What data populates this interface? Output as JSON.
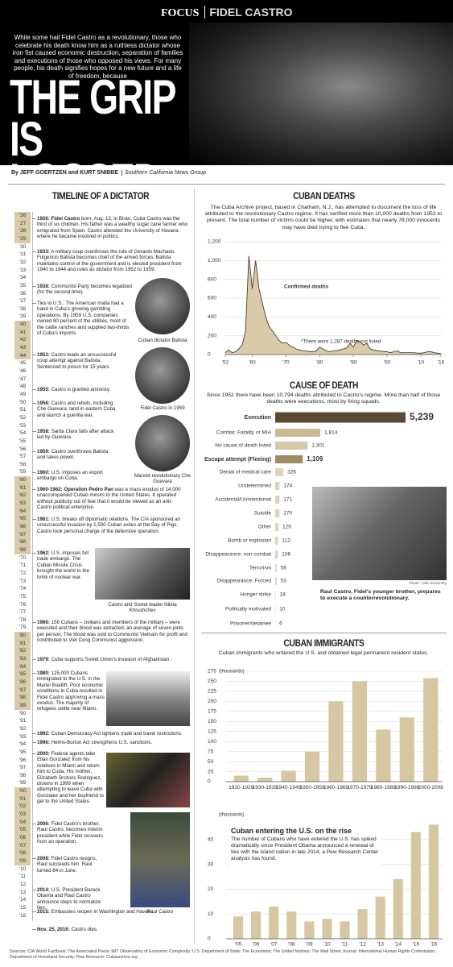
{
  "header": {
    "kicker": "FOCUS",
    "topic": "FIDEL CASTRO",
    "intro": "While some hail Fidel Castro as a revolutionary, those who celebrate his death know him as a ruthless dictator whose iron fist caused economic destruction, separation of families and executions of those who opposed his views.  For many people, his death signifies hopes for a new future and a life of freedom, because",
    "title": "THE GRIP IS LOOSED",
    "byline": "By JEFF GOERTZEN and KURT SNIBBE",
    "byline_org": "Southern California News Group"
  },
  "timeline": {
    "title": "TIMELINE OF A DICTATOR",
    "years": [
      "'26",
      "'27",
      "'28",
      "'29",
      "'30",
      "'31",
      "'32",
      "'33",
      "'34",
      "'35",
      "'36",
      "'37",
      "'38",
      "'39",
      "'40",
      "'41",
      "'42",
      "'43",
      "'44",
      "'45",
      "'46",
      "'47",
      "'48",
      "'49",
      "'50",
      "'51",
      "'52",
      "'53",
      "'54",
      "'55",
      "'56",
      "'57",
      "'58",
      "'59",
      "'60",
      "'61",
      "'62",
      "'63",
      "'64",
      "'65",
      "'66",
      "'67",
      "'68",
      "'69",
      "'70",
      "'71",
      "'72",
      "'73",
      "'74",
      "'75",
      "'76",
      "'77",
      "'78",
      "'79",
      "'80",
      "'81",
      "'82",
      "'83",
      "'84",
      "'85",
      "'86",
      "'87",
      "'88",
      "'89",
      "'90",
      "'91",
      "'92",
      "'93",
      "'94",
      "'95",
      "'96",
      "'97",
      "'98",
      "'99",
      "'00",
      "'01",
      "'02",
      "'03",
      "'04",
      "'05",
      "'06",
      "'07",
      "'08",
      "'09",
      "'10",
      "'11",
      "'12",
      "'13",
      "'14",
      "'15",
      "'16"
    ],
    "entries": [
      {
        "lead": "1926: Fidel Castro",
        "text": "born, Aug. 13, in Birán, Cuba Castro was the third of six children. His father was a wealthy sugar cane farmer who emigrated from Spain. Castro attended the University of Havana where he became involved in politics."
      },
      {
        "lead": "1933:",
        "text": "A military coup overthrows the rule of Gerardo Machado. Fulgencio Batista becomes chief of the armed forces. Batista maintains control of the government and is elected president from 1940 to 1944 and rules as dictator from 1952 to 1959."
      },
      {
        "lead": "1938:",
        "text": "Communist Party becomes legalized (for the second time)."
      },
      {
        "text": "Ties to U.S.: The American mafia had a hand in Cuba's growing gambling operations. By 1959 U.S. companies owned 80 percent of the utilities, most of the cattle ranches and supplied two-thirds of Cuba's imports."
      },
      {
        "lead": "1953:",
        "text": "Castro leads an unsuccessful coup attempt against Batista. Sentenced to prison for 15 years."
      },
      {
        "lead": "1955:",
        "text": "Castro is granted amnesty."
      },
      {
        "lead": "1956:",
        "text": "Castro and rebels, including Che Guevara, land in eastern Cuba and launch a guerilla war."
      },
      {
        "lead": "1958:",
        "text": "Santa Clara falls after attack led by Guevara."
      },
      {
        "lead": "1959:",
        "text": "Castro overthrows Batista and takes power."
      },
      {
        "lead": "1960:",
        "text": "U.S. imposes an export embargo on Cuba."
      },
      {
        "lead": "1960-1962: Operation Pedro Pan",
        "text": "was a mass exodus of 14,000 unaccompanied Cuban minors to the United States. It operated without publicity out of fear that it would be viewed as an anti-Castro political enterprise."
      },
      {
        "lead": "1961:",
        "text": "U.S. breaks off diplomatic relations. The CIA sponsored an unsuccessful invasion by 1,500 Cuban exiles at the Bay of Pigs. Castro took personal charge of the defensive operation."
      },
      {
        "lead": "1962:",
        "text": "U.S. imposes full trade embargo. The Cuban Missile Crisis brought the world to the brink of nuclear war."
      },
      {
        "lead": "1966:",
        "text": "156 Cubans – civilians and members of the military – were executed and their blood was extracted, an average of seven pints per person. The blood was sold to Communist Vietnam for profit and contributed to Viet Cong Communist aggression."
      },
      {
        "lead": "1979:",
        "text": "Cuba supports Soviet Union's invasion of Afghanistan."
      },
      {
        "lead": "1980:",
        "text": "125,000 Cubans immigrated to the U.S. in the Mariel Boatlift. Poor economic conditions in Cuba resulted in Fidel Castro approving a mass exodus. The majority of refugees settle near Miami."
      },
      {
        "lead": "1992:",
        "text": "Cuban Democracy Act tightens trade and travel restrictions."
      },
      {
        "lead": "1996:",
        "text": "Helms-Burton Act strengthens U.S. sanctions."
      },
      {
        "lead": "2000:",
        "text": "Federal agents take Elian Gonzalez from his relatives in Miami and return him to Cuba. His mother, Elizabeth Brotons Rodriguez, drowns in 1999 when attempting to leave Cuba with Gonzalez and her boyfriend to get to the United States."
      },
      {
        "lead": "2006:",
        "text": "Fidel Castro's brother, Raul Castro, becomes interim president while Fidel recovers from an operation."
      },
      {
        "lead": "2008:",
        "text": "Fidel Castro resigns, Raul succeeds him. Raul turned 84 in June."
      },
      {
        "lead": "2014:",
        "text": "U.S. President Barack Obama and Raul Castro announce steps to normalize ties."
      },
      {
        "lead": "2015:",
        "text": "Embassies reopen in Washington and Havana."
      },
      {
        "lead": "Nov. 25, 2016:",
        "text": "Castro dies."
      }
    ],
    "photo_captions": [
      "Cuban dictator Batista",
      "Fidel Castro in 1959",
      "Marxist revolutionary Che Guevara",
      "Castro and Soviet leader Nikita Khrushchev",
      "Raul Castro"
    ]
  },
  "photo_raul": {
    "credit": "Photo: Yale University",
    "caption": "Raul Castro, Fidel's younger brother, prepares to execute a counterrevolutionary."
  },
  "chart_data": [
    {
      "type": "area",
      "title": "CUBAN DEATHS",
      "subtitle": "The Cuba Archive project, based in Chatham, N.J., has attempted to document the loss of life attributed to the revolutionary Castro regime. It has verified more than 10,000 deaths from 1952 to present.  The total number of victims could be higher, with estimates that nearly 78,000 innocents may have died trying to flee Cuba.",
      "annotations": [
        "Confirmed deaths",
        "*There were 1,287 deaths not listed"
      ],
      "x": [
        1952,
        1953,
        1954,
        1955,
        1956,
        1957,
        1958,
        1959,
        1960,
        1961,
        1962,
        1963,
        1964,
        1965,
        1966,
        1967,
        1968,
        1969,
        1970,
        1971,
        1972,
        1973,
        1974,
        1975,
        1976,
        1977,
        1978,
        1979,
        1980,
        1981,
        1982,
        1983,
        1984,
        1985,
        1986,
        1987,
        1988,
        1989,
        1990,
        1991,
        1992,
        1993,
        1994,
        1995,
        1996,
        1997,
        1998,
        1999,
        2000,
        2001,
        2002,
        2003,
        2004,
        2005,
        2006,
        2007,
        2008,
        2009,
        2010,
        2011,
        2012,
        2013,
        2014,
        2015,
        2016
      ],
      "values": [
        20,
        50,
        20,
        30,
        60,
        100,
        250,
        1050,
        700,
        1000,
        700,
        550,
        400,
        300,
        250,
        200,
        150,
        120,
        130,
        100,
        80,
        60,
        50,
        40,
        40,
        30,
        30,
        40,
        80,
        60,
        40,
        30,
        40,
        40,
        50,
        60,
        70,
        120,
        80,
        150,
        140,
        100,
        120,
        60,
        50,
        40,
        40,
        30,
        30,
        20,
        30,
        40,
        20,
        20,
        20,
        20,
        20,
        15,
        15,
        20,
        30,
        30,
        20,
        15,
        10
      ],
      "color": "#d9cba9",
      "line_color": "#4a3d2a",
      "xlim": [
        1952,
        2016
      ],
      "xticks": [
        {
          "value": 1952,
          "label": "'52"
        },
        {
          "value": 1960,
          "label": "'60"
        },
        {
          "value": 1970,
          "label": "'70"
        },
        {
          "value": 1980,
          "label": "'80"
        },
        {
          "value": 1990,
          "label": "'90"
        },
        {
          "value": 2000,
          "label": "'00"
        },
        {
          "value": 2010,
          "label": "'10"
        },
        {
          "value": 2016,
          "label": "'16"
        }
      ],
      "ylim": [
        0,
        1200
      ],
      "yticks": [
        0,
        200,
        400,
        600,
        800,
        {
          "value": 1000,
          "label": "1,000"
        },
        {
          "value": 1200,
          "label": "1,200"
        }
      ],
      "grid": true
    },
    {
      "type": "hbar",
      "title": "CAUSE OF DEATH",
      "subtitle": "Since 1952 there have been 10,794 deaths attributed to Castro's regime. More than half of those deaths were executions, most by firing squads.",
      "categories": [
        "Execution",
        "Combat: Fatality or MIA",
        "No cause of death listed",
        "Escape attempt (Fleeing)",
        "Denial of medical care",
        "Undetermined",
        "Accidental/Unintentional",
        "Suicide",
        "Other",
        "Bomb or explosion",
        "Disappearance: non-combat",
        "Terrorism",
        "Disappearance: Forced",
        "Hunger strike",
        "Politically motivated",
        "Prisoner/detainee"
      ],
      "values": [
        5239,
        1814,
        1301,
        1109,
        326,
        174,
        171,
        170,
        129,
        112,
        106,
        56,
        53,
        18,
        10,
        6
      ],
      "value_labels": [
        "5,239",
        "1,814",
        "1,301",
        "1,109",
        "326",
        "174",
        "171",
        "170",
        "129",
        "112",
        "106",
        "56",
        "53",
        "18",
        "10",
        "6"
      ],
      "colors": [
        "#5b4a31",
        "#cbb993",
        "#d6c9ab",
        "#a08c64",
        "#ddd3bd",
        "#ddd3bd",
        "#ddd3bd",
        "#ddd3bd",
        "#ddd3bd",
        "#ddd3bd",
        "#ddd3bd",
        "#ddd3bd",
        "#ddd3bd",
        "#ddd3bd",
        "#ddd3bd",
        "#ddd3bd"
      ]
    },
    {
      "type": "bar",
      "title": "CUBAN IMMIGRANTS",
      "subtitle": "Cuban immigrants who entered the U.S. and obtained legal permanent resident status.",
      "y_label": "(thousands)",
      "categories": [
        "1920-1929",
        "1930-1939",
        "1940-1949",
        "1950-1959",
        "1960-1969",
        "1970-1979",
        "1980-1989",
        "1990-1999",
        "2000-2008"
      ],
      "values": [
        15,
        10,
        27,
        75,
        200,
        250,
        130,
        160,
        258
      ],
      "color": "#d6c6a1",
      "ylim": [
        0,
        275
      ],
      "yticks": [
        0,
        25,
        50,
        75,
        100,
        125,
        150,
        175,
        200,
        225,
        250,
        275
      ],
      "grid": true
    },
    {
      "type": "bar",
      "title": "Cuban entering the U.S. on the rise",
      "subtitle": "The number of Cubans who have entered the U.S. has spiked dramatically since President Obama announced  a renewal of ties with the island nation in late 2014, a Pew Research Center analysis has found.",
      "y_label": "(thousands)",
      "categories": [
        "'05",
        "'06",
        "'07",
        "'08",
        "'09",
        "'10",
        "'11",
        "'12",
        "'13",
        "'14",
        "'15",
        "'16"
      ],
      "values": [
        9,
        11,
        13,
        11,
        7,
        8,
        7,
        12,
        17,
        24,
        43,
        46
      ],
      "color": "#d6c6a1",
      "ylim": [
        0,
        50
      ],
      "yticks": [
        0,
        10,
        20,
        30,
        40
      ],
      "grid": true
    }
  ],
  "sources": "Sources: CIA World Factbook; The Associated Press; MIT Observatory of Economic Complexity; U.S. Department of State; The Economist; The United Nations; The Wall Street Journal; International Human Rights Commission; Department of Homeland Security; Pew Research; Cubaarchive.org"
}
